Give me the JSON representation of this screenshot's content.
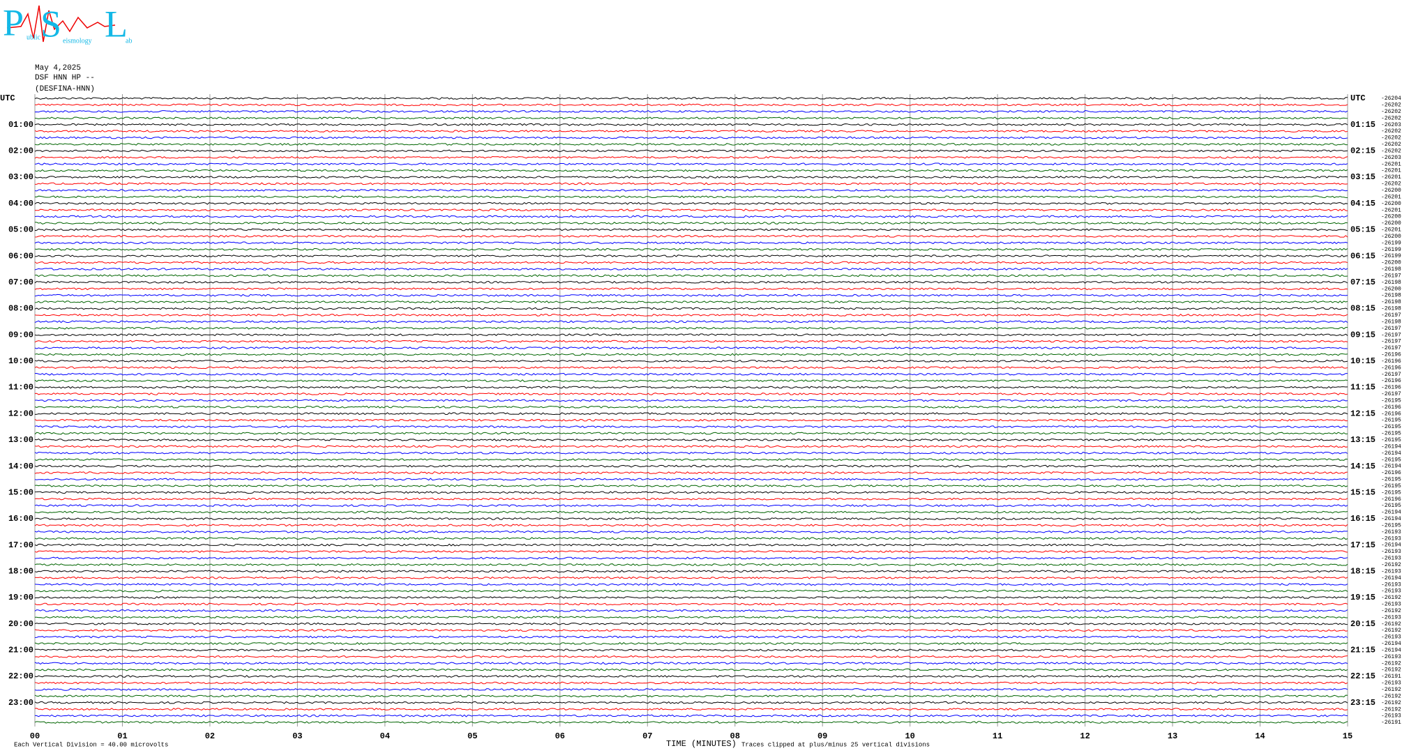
{
  "chart_data": {
    "type": "helicorder",
    "logo": {
      "big1": "P",
      "small1": "ublic",
      "big2": "S",
      "small2": "eismology",
      "big3": "L",
      "small3": "ab"
    },
    "date": "May 4,2025",
    "station": "DSF HNN HP --",
    "channel": "(DESFINA-HNN)",
    "left_labels": [
      "UTC",
      "01:00",
      "02:00",
      "03:00",
      "04:00",
      "05:00",
      "06:00",
      "07:00",
      "08:00",
      "09:00",
      "10:00",
      "11:00",
      "12:00",
      "13:00",
      "14:00",
      "15:00",
      "16:00",
      "17:00",
      "18:00",
      "19:00",
      "20:00",
      "21:00",
      "22:00",
      "23:00"
    ],
    "right_labels": [
      "UTC",
      "01:15",
      "02:15",
      "03:15",
      "04:15",
      "05:15",
      "06:15",
      "07:15",
      "08:15",
      "09:15",
      "10:15",
      "11:15",
      "12:15",
      "13:15",
      "14:15",
      "15:15",
      "16:15",
      "17:15",
      "18:15",
      "19:15",
      "20:15",
      "21:15",
      "22:15",
      "23:15"
    ],
    "offsets": [
      -26204,
      -26202,
      -26202,
      -26202,
      -26203,
      -26202,
      -26202,
      -26202,
      -26202,
      -26203,
      -26201,
      -26201,
      -26201,
      -26202,
      -26200,
      -26201,
      -26200,
      -26201,
      -26200,
      -26200,
      -26201,
      -26200,
      -26199,
      -26199,
      -26199,
      -26200,
      -26198,
      -26197,
      -26198,
      -26200,
      -26198,
      -26198,
      -26198,
      -26197,
      -26198,
      -26197,
      -26197,
      -26197,
      -26197,
      -26196,
      -26196,
      -26196,
      -26197,
      -26196,
      -26196,
      -26197,
      -26195,
      -26196,
      -26196,
      -26195,
      -26195,
      -26195,
      -26195,
      -26194,
      -26194,
      -26195,
      -26194,
      -26196,
      -26195,
      -26195,
      -26195,
      -26196,
      -26195,
      -26194,
      -26194,
      -26195,
      -26193,
      -26193,
      -26194,
      -26193,
      -26193,
      -26192,
      -26193,
      -26194,
      -26193,
      -26193,
      -26192,
      -26193,
      -26192,
      -26193,
      -26192,
      -26192,
      -26193,
      -26194,
      -26194,
      -26193,
      -26192,
      -26192,
      -26191,
      -26193,
      -26192,
      -26192,
      -26192,
      -26192,
      -26193,
      -26191
    ],
    "colors": [
      "#000000",
      "#ff0000",
      "#0000ff",
      "#006400"
    ],
    "xlabel": "TIME (MINUTES)",
    "xlim": [
      0,
      15
    ],
    "xticks": [
      {
        "value": 0,
        "label": "00"
      },
      {
        "value": 1,
        "label": "01"
      },
      {
        "value": 2,
        "label": "02"
      },
      {
        "value": 3,
        "label": "03"
      },
      {
        "value": 4,
        "label": "04"
      },
      {
        "value": 5,
        "label": "05"
      },
      {
        "value": 6,
        "label": "06"
      },
      {
        "value": 7,
        "label": "07"
      },
      {
        "value": 8,
        "label": "08"
      },
      {
        "value": 9,
        "label": "09"
      },
      10,
      11,
      12,
      13,
      14,
      15
    ],
    "scale_note": "Each Vertical Division =   40.00 microvolts",
    "clip_note": "Traces clipped at plus/minus 25 vertical divisions",
    "grid": true
  }
}
